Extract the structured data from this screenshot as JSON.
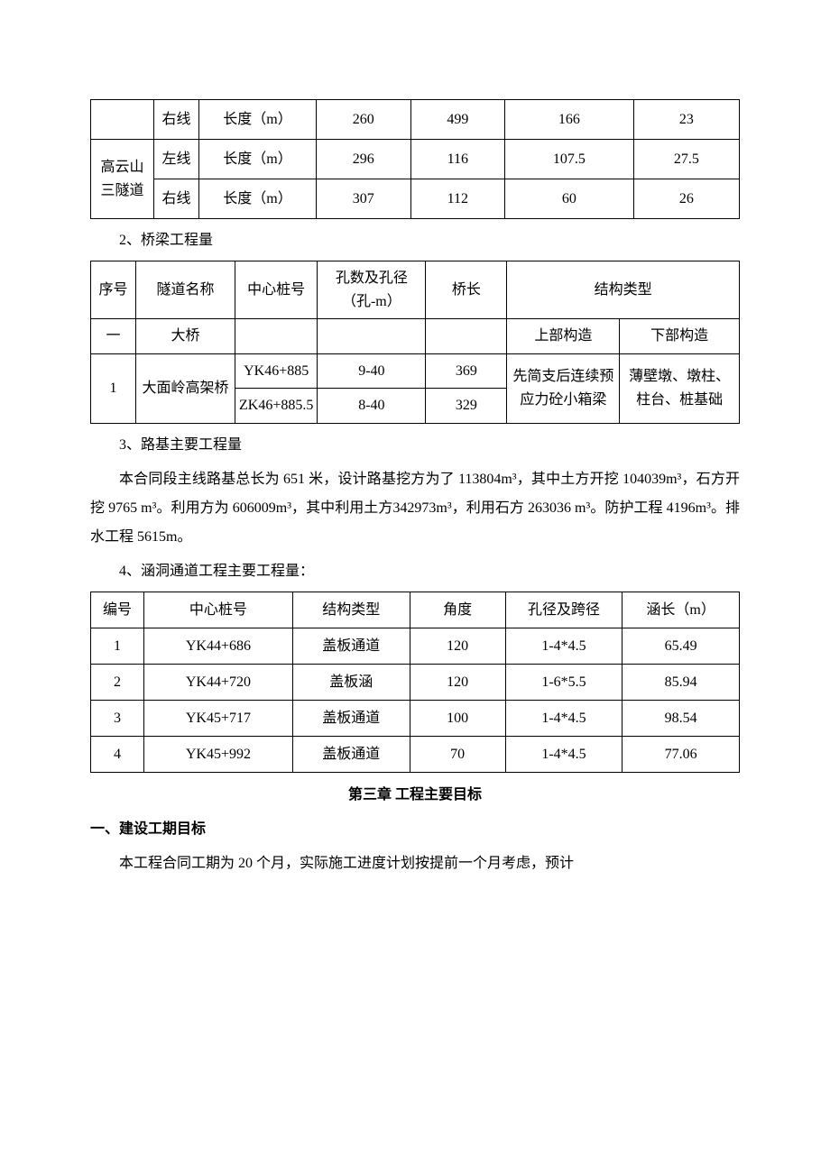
{
  "table1": {
    "length_label": "长度（m）",
    "row1": {
      "line": "右线",
      "v1": "260",
      "v2": "499",
      "v3": "166",
      "v4": "23"
    },
    "tunnel2_name": "高云山三隧道",
    "row2": {
      "line": "左线",
      "v1": "296",
      "v2": "116",
      "v3": "107.5",
      "v4": "27.5"
    },
    "row3": {
      "line": "右线",
      "v1": "307",
      "v2": "112",
      "v3": "60",
      "v4": "26"
    }
  },
  "section2_title": "2、桥梁工程量",
  "table2": {
    "headers": {
      "seq": "序号",
      "name": "隧道名称",
      "pile": "中心桩号",
      "span": "孔数及孔径（孔-m）",
      "length": "桥长",
      "struct": "结构类型"
    },
    "row1": {
      "seq": "一",
      "name": "大桥",
      "upper": "上部构造",
      "lower": "下部构造"
    },
    "row2": {
      "seq": "1",
      "name": "大面岭高架桥",
      "pile_a": "YK46+885",
      "span_a": "9-40",
      "len_a": "369",
      "pile_b": "ZK46+885.5",
      "span_b": "8-40",
      "len_b": "329",
      "upper": "先简支后连续预应力砼小箱梁",
      "lower": "薄壁墩、墩柱、柱台、桩基础"
    }
  },
  "section3_title": "3、路基主要工程量",
  "paragraph1": "本合同段主线路基总长为 651 米，设计路基挖方为了 113804m³，其中土方开挖 104039m³，石方开挖 9765 m³。利用方为 606009m³，其中利用土方342973m³，利用石方 263036 m³。防护工程 4196m³。排水工程 5615m。",
  "section4_title": "4、涵洞通道工程主要工程量：",
  "table3": {
    "headers": {
      "num": "编号",
      "pile": "中心桩号",
      "type": "结构类型",
      "angle": "角度",
      "span": "孔径及跨径",
      "length": "涵长（m）"
    },
    "rows": [
      {
        "num": "1",
        "pile": "YK44+686",
        "type": "盖板通道",
        "angle": "120",
        "span": "1-4*4.5",
        "length": "65.49"
      },
      {
        "num": "2",
        "pile": "YK44+720",
        "type": "盖板涵",
        "angle": "120",
        "span": "1-6*5.5",
        "length": "85.94"
      },
      {
        "num": "3",
        "pile": "YK45+717",
        "type": "盖板通道",
        "angle": "100",
        "span": "1-4*4.5",
        "length": "98.54"
      },
      {
        "num": "4",
        "pile": "YK45+992",
        "type": "盖板通道",
        "angle": "70",
        "span": "1-4*4.5",
        "length": "77.06"
      }
    ]
  },
  "chapter_title": "第三章  工程主要目标",
  "section_a_title": "一、建设工期目标",
  "paragraph2": "本工程合同工期为 20 个月，实际施工进度计划按提前一个月考虑，预计"
}
